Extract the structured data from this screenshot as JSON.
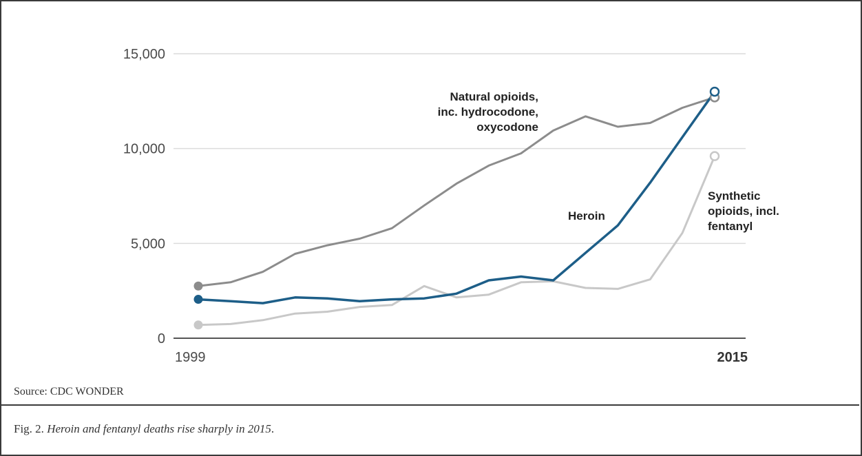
{
  "source_text": "Source: CDC WONDER",
  "caption": {
    "prefix": "Fig. 2. ",
    "text": "Heroin and fentanyl deaths rise sharply in 2015",
    "suffix": "."
  },
  "chart_data": {
    "type": "line",
    "title": "",
    "xlabel": "",
    "ylabel": "",
    "x": [
      1999,
      2000,
      2001,
      2002,
      2003,
      2004,
      2005,
      2006,
      2007,
      2008,
      2009,
      2010,
      2011,
      2012,
      2013,
      2014,
      2015
    ],
    "x_tick_labels": [
      "1999",
      "2015"
    ],
    "y_ticks": [
      0,
      5000,
      10000,
      15000
    ],
    "y_tick_labels": [
      "0",
      "5,000",
      "10,000",
      "15,000"
    ],
    "ylim": [
      0,
      15000
    ],
    "grid": true,
    "series": [
      {
        "name": "Natural opioids, inc. hydrocodone, oxycodone",
        "label_lines": [
          "Natural opioids,",
          "inc. hydrocodone,",
          "oxycodone"
        ],
        "color": "#8c8c8c",
        "values": [
          2750,
          2950,
          3500,
          4450,
          4900,
          5250,
          5800,
          7000,
          8150,
          9100,
          9750,
          10950,
          11700,
          11150,
          11350,
          12150,
          12700
        ]
      },
      {
        "name": "Heroin",
        "label_lines": [
          "Heroin"
        ],
        "color": "#1d5e88",
        "values": [
          2050,
          1950,
          1850,
          2150,
          2100,
          1950,
          2050,
          2100,
          2350,
          3050,
          3250,
          3050,
          4500,
          5950,
          8200,
          10600,
          13000
        ]
      },
      {
        "name": "Synthetic opioids, incl. fentanyl",
        "label_lines": [
          "Synthetic",
          "opioids, incl.",
          "fentanyl"
        ],
        "color": "#c8c8c8",
        "values": [
          700,
          750,
          950,
          1300,
          1400,
          1650,
          1750,
          2750,
          2150,
          2300,
          2950,
          3000,
          2650,
          2600,
          3100,
          5550,
          9600
        ]
      }
    ]
  }
}
